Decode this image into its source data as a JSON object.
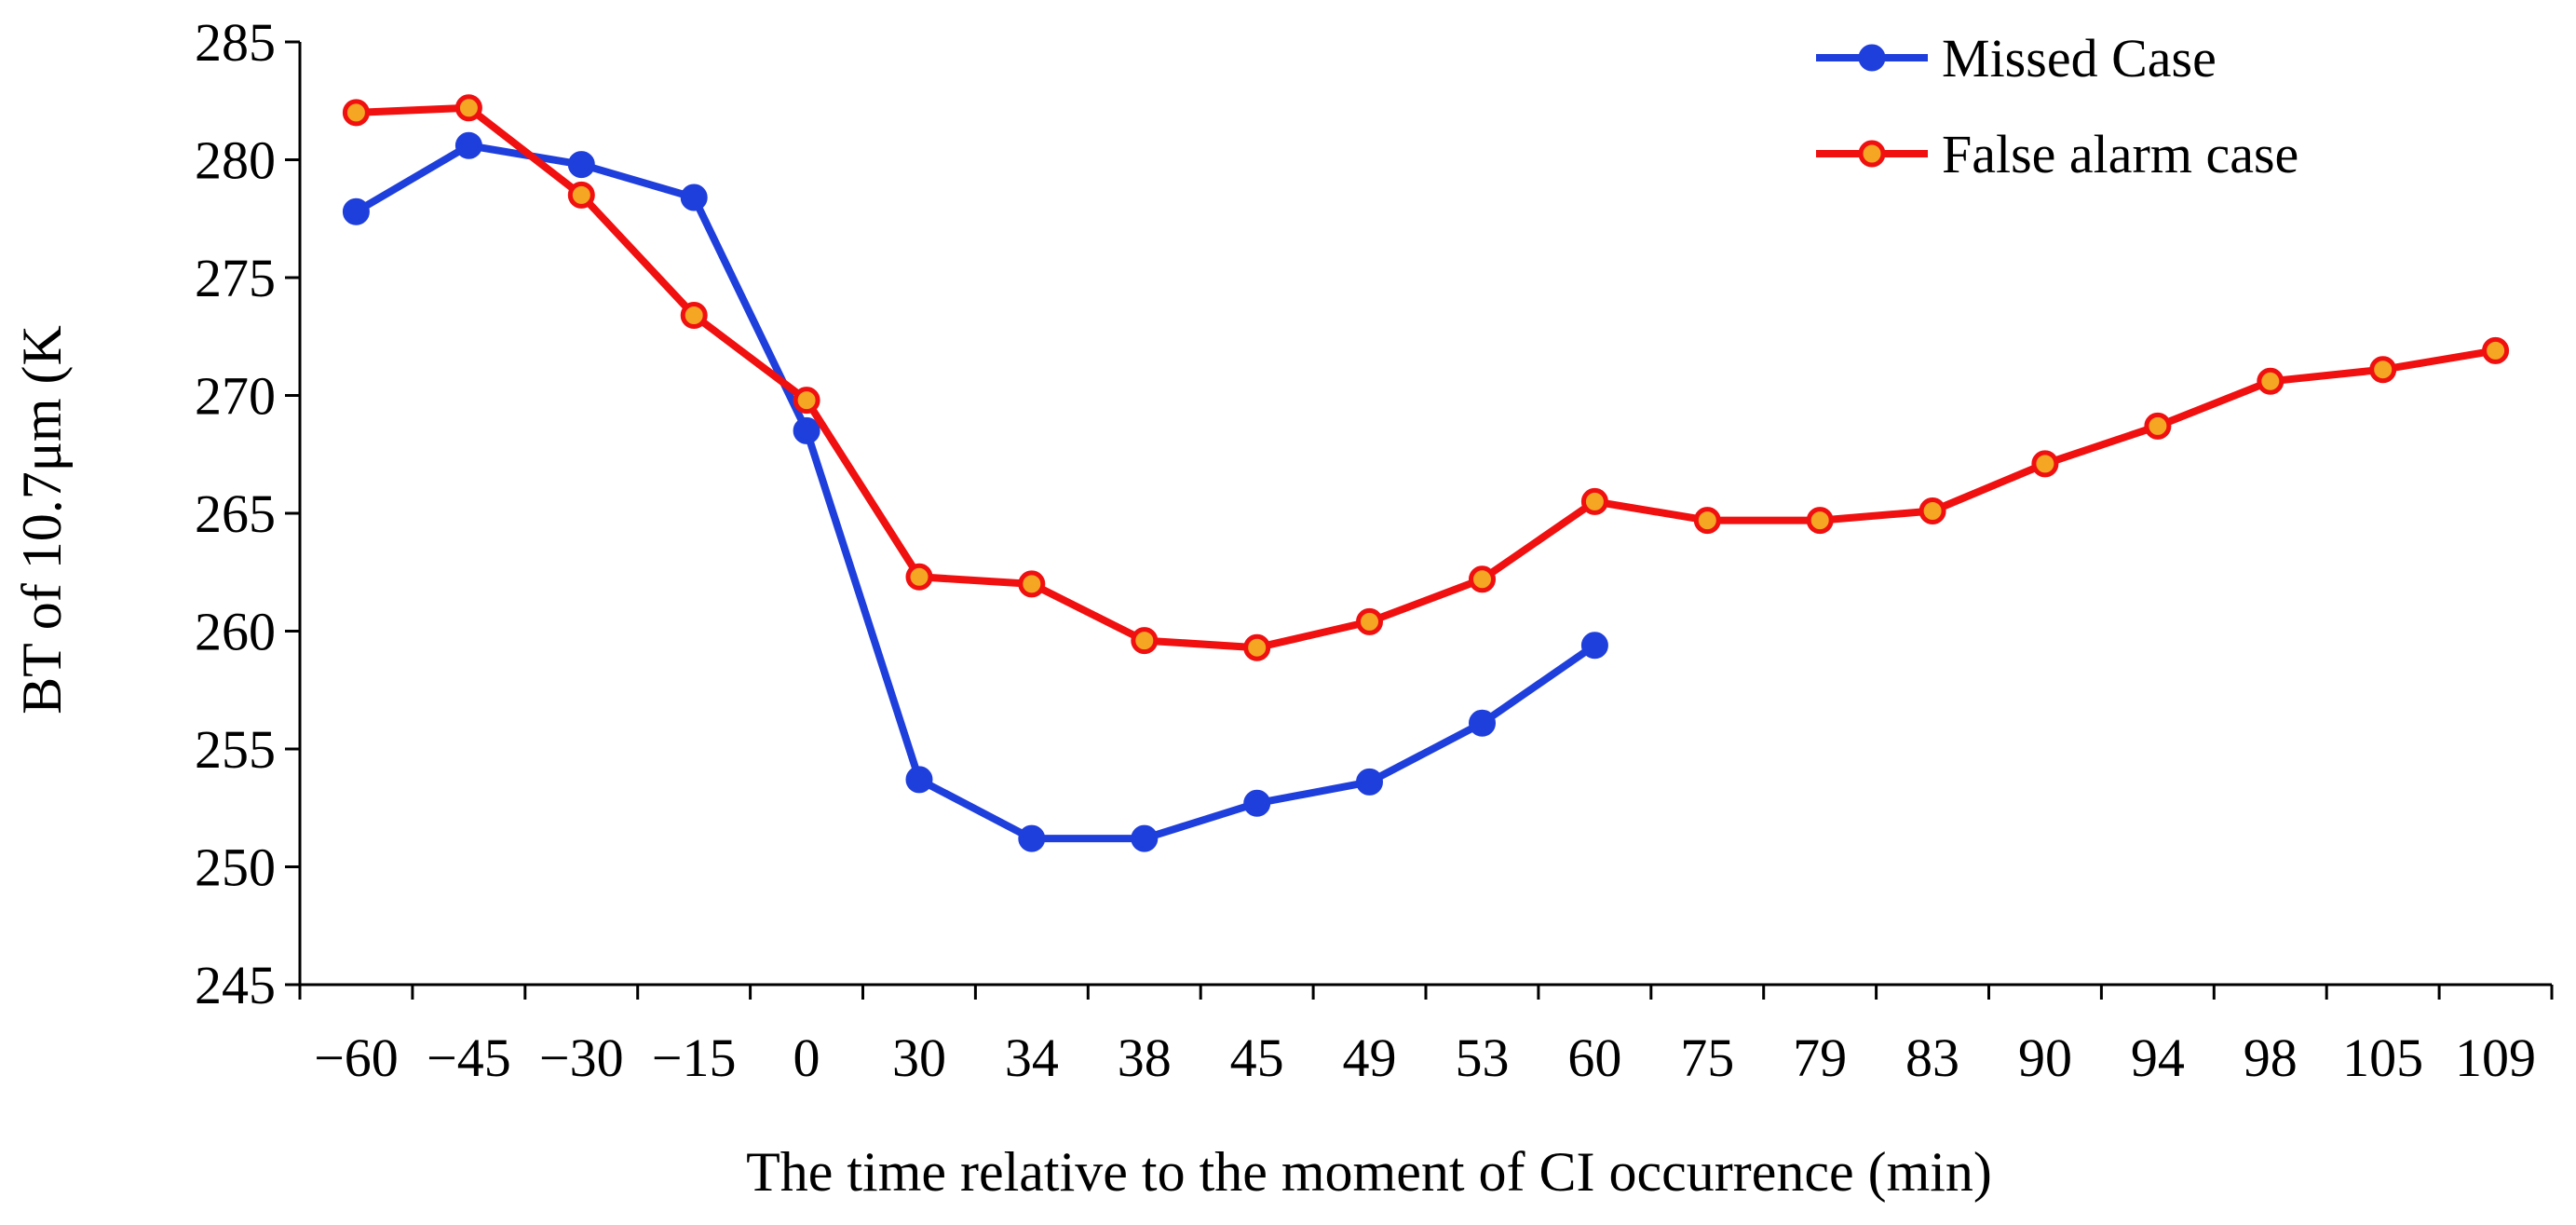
{
  "chart_data": {
    "type": "line",
    "title": "",
    "xlabel": "The time relative to the moment of CI occurrence (min)",
    "ylabel": "BT of 10.7μm (K",
    "categories": [
      "−60",
      "−45",
      "−30",
      "−15",
      "0",
      "30",
      "34",
      "38",
      "45",
      "49",
      "53",
      "60",
      "75",
      "79",
      "83",
      "90",
      "94",
      "98",
      "105",
      "109"
    ],
    "ylim": [
      245,
      285
    ],
    "yticks": [
      245,
      250,
      255,
      260,
      265,
      270,
      275,
      280,
      285
    ],
    "grid": false,
    "legend_position": "top-right",
    "series": [
      {
        "name": "Missed Case",
        "color": "#1f3fdc",
        "marker_fill": "#1f3fdc",
        "values": [
          277.8,
          280.6,
          279.8,
          278.4,
          268.5,
          253.7,
          251.2,
          251.2,
          252.7,
          253.6,
          256.1,
          259.4,
          null,
          null,
          null,
          null,
          null,
          null,
          null,
          null
        ]
      },
      {
        "name": "False alarm case",
        "color": "#f01010",
        "marker_fill": "#f5a623",
        "values": [
          282.0,
          282.2,
          278.5,
          273.4,
          269.8,
          262.3,
          262.0,
          259.6,
          259.3,
          260.4,
          262.2,
          265.5,
          264.7,
          264.7,
          265.1,
          267.1,
          268.7,
          270.6,
          271.1,
          271.9
        ]
      }
    ]
  }
}
